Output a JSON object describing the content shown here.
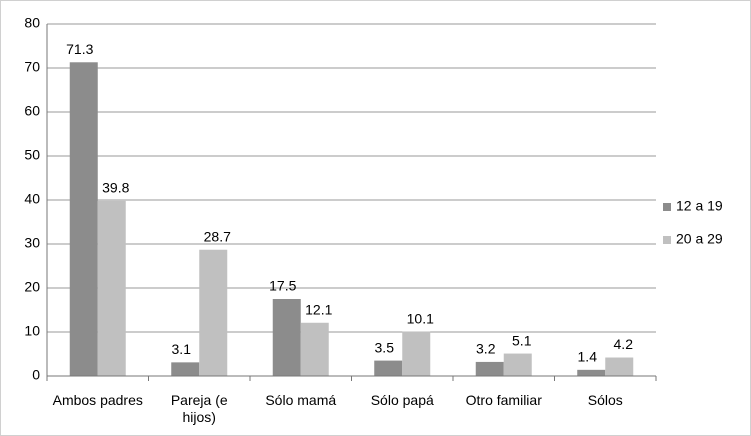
{
  "chart_data": {
    "type": "bar",
    "categories": [
      "Ambos padres",
      "Pareja (e hijos)",
      "Sólo mamá",
      "Sólo papá",
      "Otro familiar",
      "Sólos"
    ],
    "series": [
      {
        "name": "12 a 19",
        "color": "#8c8c8c",
        "values": [
          71.3,
          3.1,
          17.5,
          3.5,
          3.2,
          1.4
        ]
      },
      {
        "name": "20 a 29",
        "color": "#c0c0c0",
        "values": [
          39.8,
          28.7,
          12.1,
          10.1,
          5.1,
          4.2
        ]
      }
    ],
    "ylim": [
      0,
      80
    ],
    "yticks": [
      0,
      10,
      20,
      30,
      40,
      50,
      60,
      70,
      80
    ],
    "grid": true,
    "legend": "right"
  }
}
